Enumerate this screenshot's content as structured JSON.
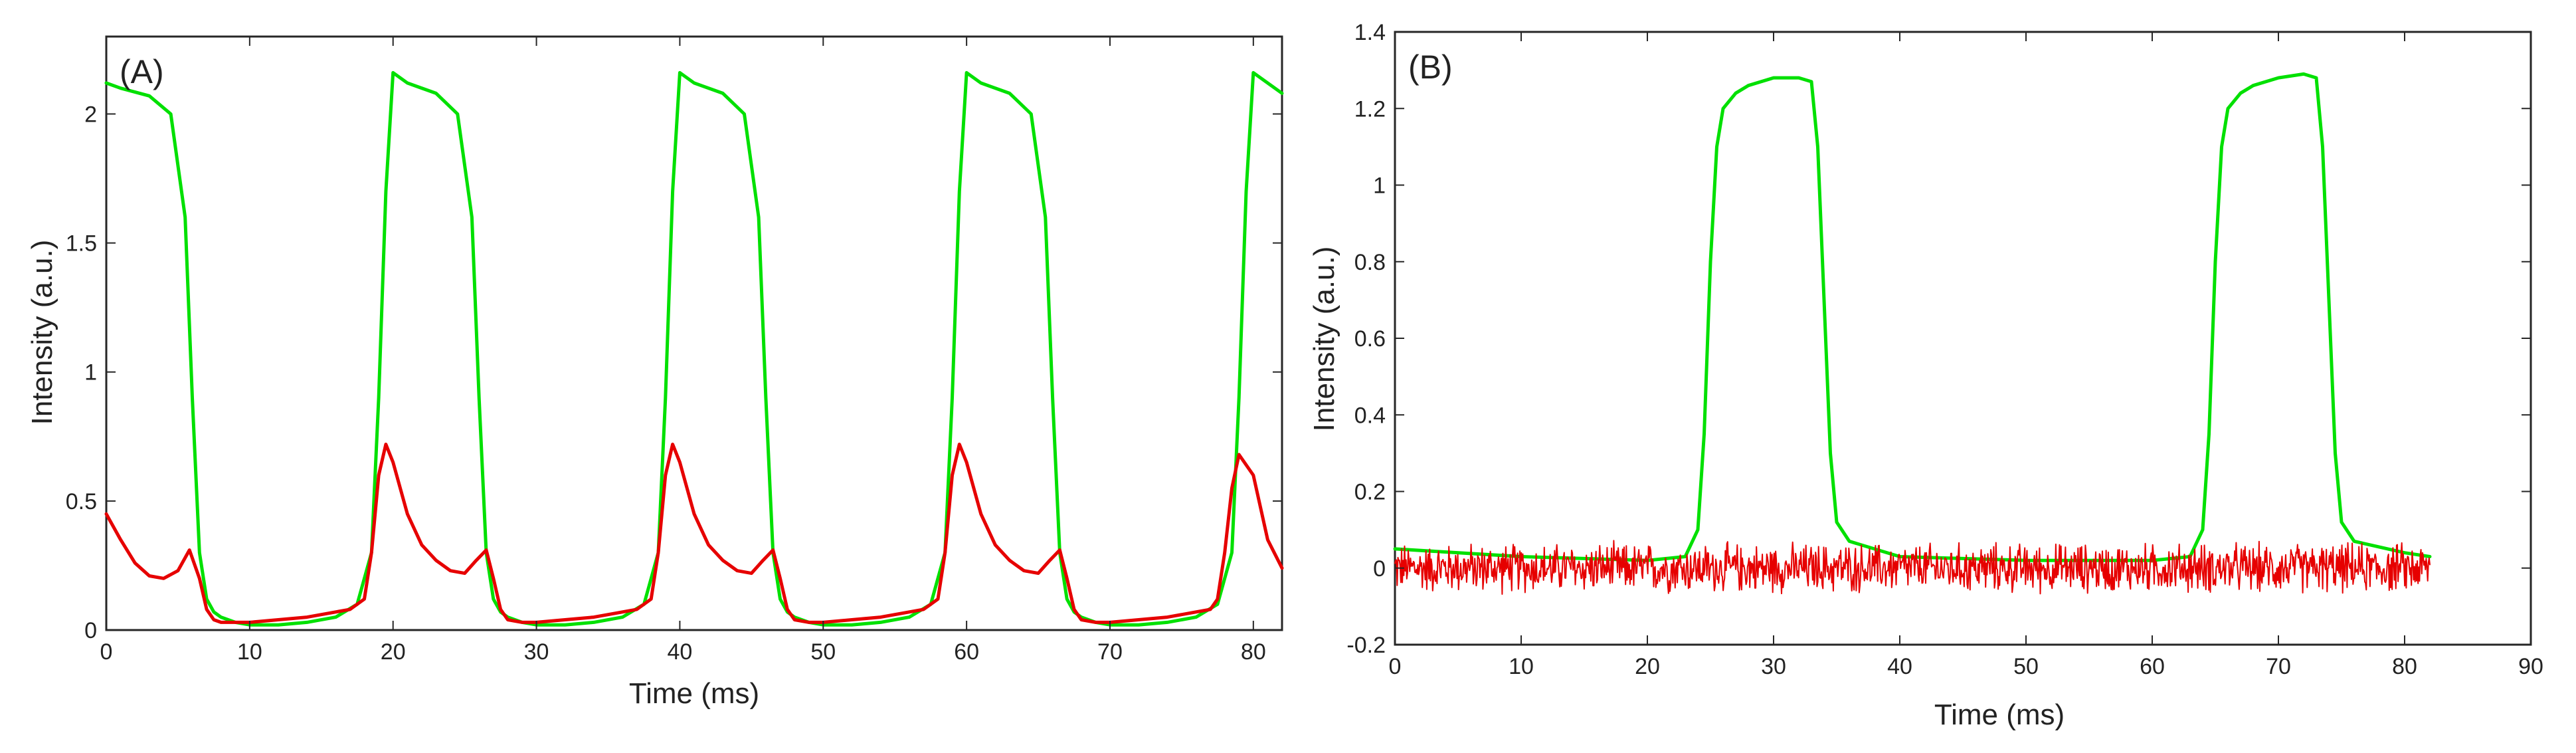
{
  "chart_data": [
    {
      "type": "line",
      "panel_label": "(A)",
      "title": "",
      "xlabel": "Time (ms)",
      "ylabel": "Intensity (a.u.)",
      "xlim": [
        0,
        82
      ],
      "ylim": [
        0,
        2.3
      ],
      "x_ticks": [
        0,
        10,
        20,
        30,
        40,
        50,
        60,
        70,
        80
      ],
      "y_ticks": [
        0,
        0.5,
        1,
        1.5,
        2
      ],
      "x_tick_labels": [
        "0",
        "10",
        "20",
        "30",
        "40",
        "50",
        "60",
        "70",
        "80"
      ],
      "y_tick_labels": [
        "0",
        "0.5",
        "1",
        "1.5",
        "2"
      ],
      "grid": false,
      "series": [
        {
          "name": "green",
          "color": "#00e000",
          "x": [
            0,
            1,
            3,
            4.5,
            5.5,
            6,
            6.5,
            7,
            7.5,
            8,
            9,
            10,
            12,
            14,
            16,
            17.5,
            18.5,
            19,
            19.5,
            20,
            21,
            23,
            24.5,
            25.5,
            26,
            26.5,
            27,
            27.5,
            28,
            29,
            30,
            32,
            34,
            36,
            37.5,
            38.5,
            39,
            39.5,
            40,
            41,
            43,
            44.5,
            45.5,
            46,
            46.5,
            47,
            47.5,
            48,
            49,
            50,
            52,
            54,
            56,
            57.5,
            58.5,
            59,
            59.5,
            60,
            61,
            63,
            64.5,
            65.5,
            66,
            66.5,
            67,
            67.5,
            68,
            69,
            70,
            72,
            74,
            76,
            77.5,
            78.5,
            79,
            79.5,
            80,
            81,
            82
          ],
          "values": [
            2.12,
            2.1,
            2.07,
            2.0,
            1.6,
            0.9,
            0.3,
            0.12,
            0.07,
            0.05,
            0.03,
            0.02,
            0.02,
            0.03,
            0.05,
            0.1,
            0.3,
            0.9,
            1.7,
            2.16,
            2.12,
            2.08,
            2.0,
            1.6,
            0.9,
            0.3,
            0.12,
            0.07,
            0.05,
            0.03,
            0.02,
            0.02,
            0.03,
            0.05,
            0.1,
            0.3,
            0.9,
            1.7,
            2.16,
            2.12,
            2.08,
            2.0,
            1.6,
            0.9,
            0.3,
            0.12,
            0.07,
            0.05,
            0.03,
            0.02,
            0.02,
            0.03,
            0.05,
            0.1,
            0.3,
            0.9,
            1.7,
            2.16,
            2.12,
            2.08,
            2.0,
            1.6,
            0.9,
            0.3,
            0.12,
            0.07,
            0.05,
            0.03,
            0.02,
            0.02,
            0.03,
            0.05,
            0.1,
            0.3,
            0.9,
            1.7,
            2.16,
            2.12,
            2.08
          ]
        },
        {
          "name": "red",
          "color": "#e60000",
          "x": [
            0,
            1,
            2,
            3,
            4,
            5,
            5.8,
            6.5,
            7,
            7.5,
            8,
            9,
            10,
            12,
            14,
            16,
            17,
            18,
            18.5,
            19,
            19.5,
            20,
            21,
            22,
            23,
            24,
            25,
            25.8,
            26.5,
            27,
            27.5,
            28,
            29,
            30,
            32,
            34,
            36,
            37,
            38,
            38.5,
            39,
            39.5,
            40,
            41,
            42,
            43,
            44,
            45,
            45.8,
            46.5,
            47,
            47.5,
            48,
            49,
            50,
            52,
            54,
            56,
            57,
            58,
            58.5,
            59,
            59.5,
            60,
            61,
            62,
            63,
            64,
            65,
            65.8,
            66.5,
            67,
            67.5,
            68,
            69,
            70,
            72,
            74,
            76,
            77,
            77.5,
            78,
            78.5,
            79,
            80,
            81,
            82
          ],
          "values": [
            0.45,
            0.35,
            0.26,
            0.21,
            0.2,
            0.23,
            0.31,
            0.2,
            0.08,
            0.04,
            0.03,
            0.03,
            0.03,
            0.04,
            0.05,
            0.07,
            0.08,
            0.12,
            0.3,
            0.6,
            0.72,
            0.65,
            0.45,
            0.33,
            0.27,
            0.23,
            0.22,
            0.27,
            0.31,
            0.2,
            0.08,
            0.04,
            0.03,
            0.03,
            0.04,
            0.05,
            0.07,
            0.08,
            0.12,
            0.3,
            0.6,
            0.72,
            0.65,
            0.45,
            0.33,
            0.27,
            0.23,
            0.22,
            0.27,
            0.31,
            0.2,
            0.08,
            0.04,
            0.03,
            0.03,
            0.04,
            0.05,
            0.07,
            0.08,
            0.12,
            0.3,
            0.6,
            0.72,
            0.65,
            0.45,
            0.33,
            0.27,
            0.23,
            0.22,
            0.27,
            0.31,
            0.2,
            0.08,
            0.04,
            0.03,
            0.03,
            0.04,
            0.05,
            0.07,
            0.08,
            0.12,
            0.3,
            0.55,
            0.68,
            0.6,
            0.35,
            0.24
          ]
        }
      ]
    },
    {
      "type": "line",
      "panel_label": "(B)",
      "title": "",
      "xlabel": "Time (ms)",
      "ylabel": "Intensity (a.u.)",
      "xlim": [
        0,
        90
      ],
      "ylim": [
        -0.2,
        1.4
      ],
      "x_ticks": [
        0,
        10,
        20,
        30,
        40,
        50,
        60,
        70,
        80,
        90
      ],
      "y_ticks": [
        -0.2,
        0,
        0.2,
        0.4,
        0.6,
        0.8,
        1,
        1.2,
        1.4
      ],
      "x_tick_labels": [
        "0",
        "10",
        "20",
        "30",
        "40",
        "50",
        "60",
        "70",
        "80",
        "90"
      ],
      "y_tick_labels": [
        "-0.2",
        "0",
        "0.2",
        "0.4",
        "0.6",
        "0.8",
        "1",
        "1.2",
        "1.4"
      ],
      "grid": false,
      "series": [
        {
          "name": "green",
          "color": "#00e000",
          "x": [
            0,
            10,
            20,
            23,
            24,
            24.5,
            25,
            25.5,
            26,
            27,
            28,
            30,
            32,
            33,
            33.5,
            34,
            34.5,
            35,
            36,
            40,
            50,
            60,
            63,
            64,
            64.5,
            65,
            65.5,
            66,
            67,
            68,
            70,
            72,
            73,
            73.5,
            74,
            74.5,
            75,
            76,
            80,
            82
          ],
          "values": [
            0.05,
            0.03,
            0.02,
            0.03,
            0.1,
            0.35,
            0.8,
            1.1,
            1.2,
            1.24,
            1.26,
            1.28,
            1.28,
            1.27,
            1.1,
            0.7,
            0.3,
            0.12,
            0.07,
            0.03,
            0.02,
            0.02,
            0.03,
            0.1,
            0.35,
            0.8,
            1.1,
            1.2,
            1.24,
            1.26,
            1.28,
            1.29,
            1.28,
            1.1,
            0.7,
            0.3,
            0.12,
            0.07,
            0.04,
            0.03
          ]
        },
        {
          "name": "red",
          "color": "#e60000",
          "x_start": 0,
          "x_end": 82,
          "baseline": 0.0,
          "noise_amplitude": 0.05,
          "note": "noisy signal around zero"
        }
      ]
    }
  ]
}
